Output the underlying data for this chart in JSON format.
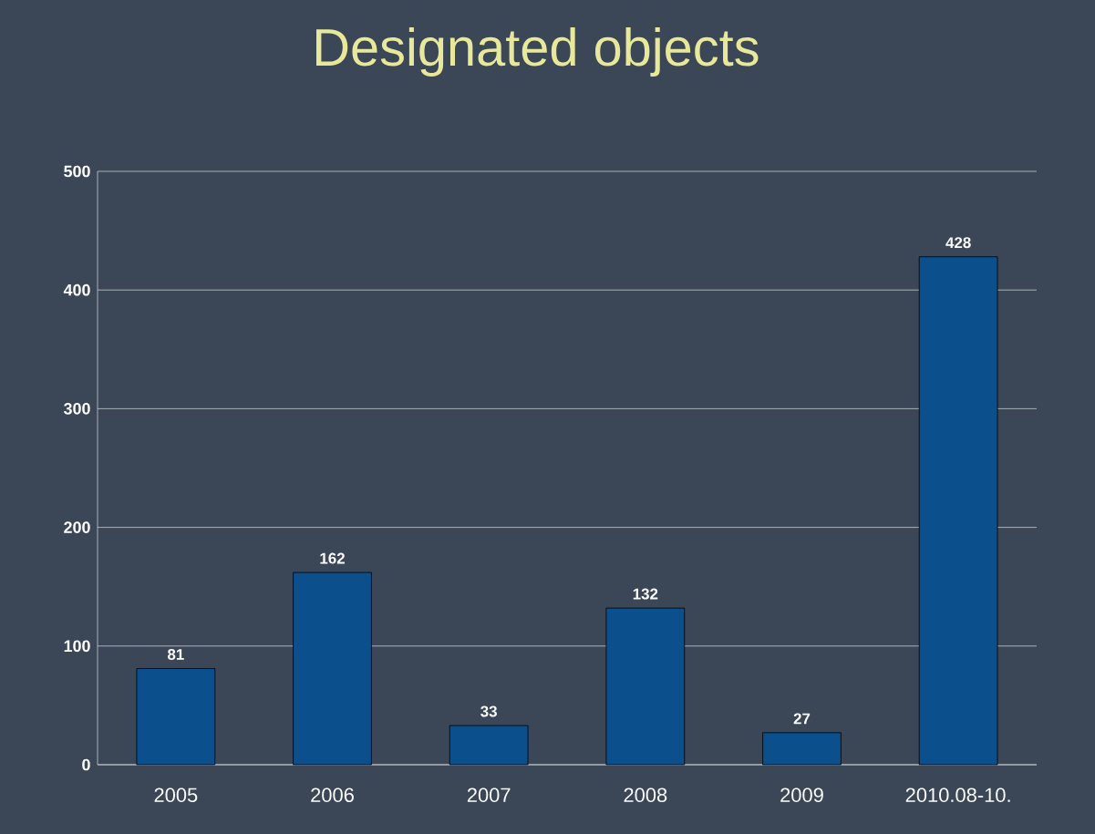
{
  "chart_data": {
    "type": "bar",
    "title": "Designated objects",
    "categories": [
      "2005",
      "2006",
      "2007",
      "2008",
      "2009",
      "2010.08-10."
    ],
    "values": [
      81,
      162,
      33,
      132,
      27,
      428
    ],
    "color": "#0b4f8c",
    "ylim": [
      0,
      500
    ],
    "yticks": [
      0,
      100,
      200,
      300,
      400,
      500
    ],
    "grid": "y",
    "data_labels": true
  }
}
